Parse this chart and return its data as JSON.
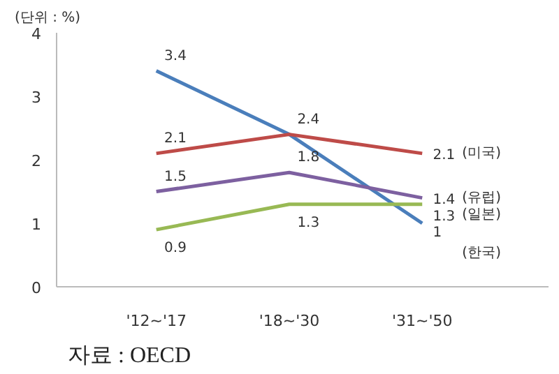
{
  "chart_data": {
    "type": "line",
    "title": "(단위 : %)",
    "categories": [
      "'12~'17",
      "'18~'30",
      "'31~'50"
    ],
    "series": [
      {
        "name": "(한국)",
        "color": "#4a7ebb",
        "values": [
          3.4,
          2.4,
          1
        ],
        "value_labels": [
          "3.4",
          null,
          "1"
        ]
      },
      {
        "name": "(미국)",
        "color": "#be4b48",
        "values": [
          2.1,
          2.4,
          2.1
        ],
        "value_labels": [
          "2.1",
          "2.4",
          "2.1"
        ]
      },
      {
        "name": "(유럽)",
        "color": "#7d60a0",
        "values": [
          1.5,
          1.8,
          1.4
        ],
        "value_labels": [
          "1.5",
          "1.8",
          "1.4"
        ]
      },
      {
        "name": "(일본)",
        "color": "#98b954",
        "values": [
          0.9,
          1.3,
          1.3
        ],
        "value_labels": [
          "0.9",
          "1.3",
          "1.3"
        ]
      }
    ],
    "ylim": [
      0,
      4
    ],
    "yticks": [
      0,
      1,
      2,
      3,
      4
    ],
    "grid": false,
    "legend": false,
    "marker": "none",
    "line_style": "solid",
    "annotations": [
      "자료 : OECD"
    ]
  }
}
